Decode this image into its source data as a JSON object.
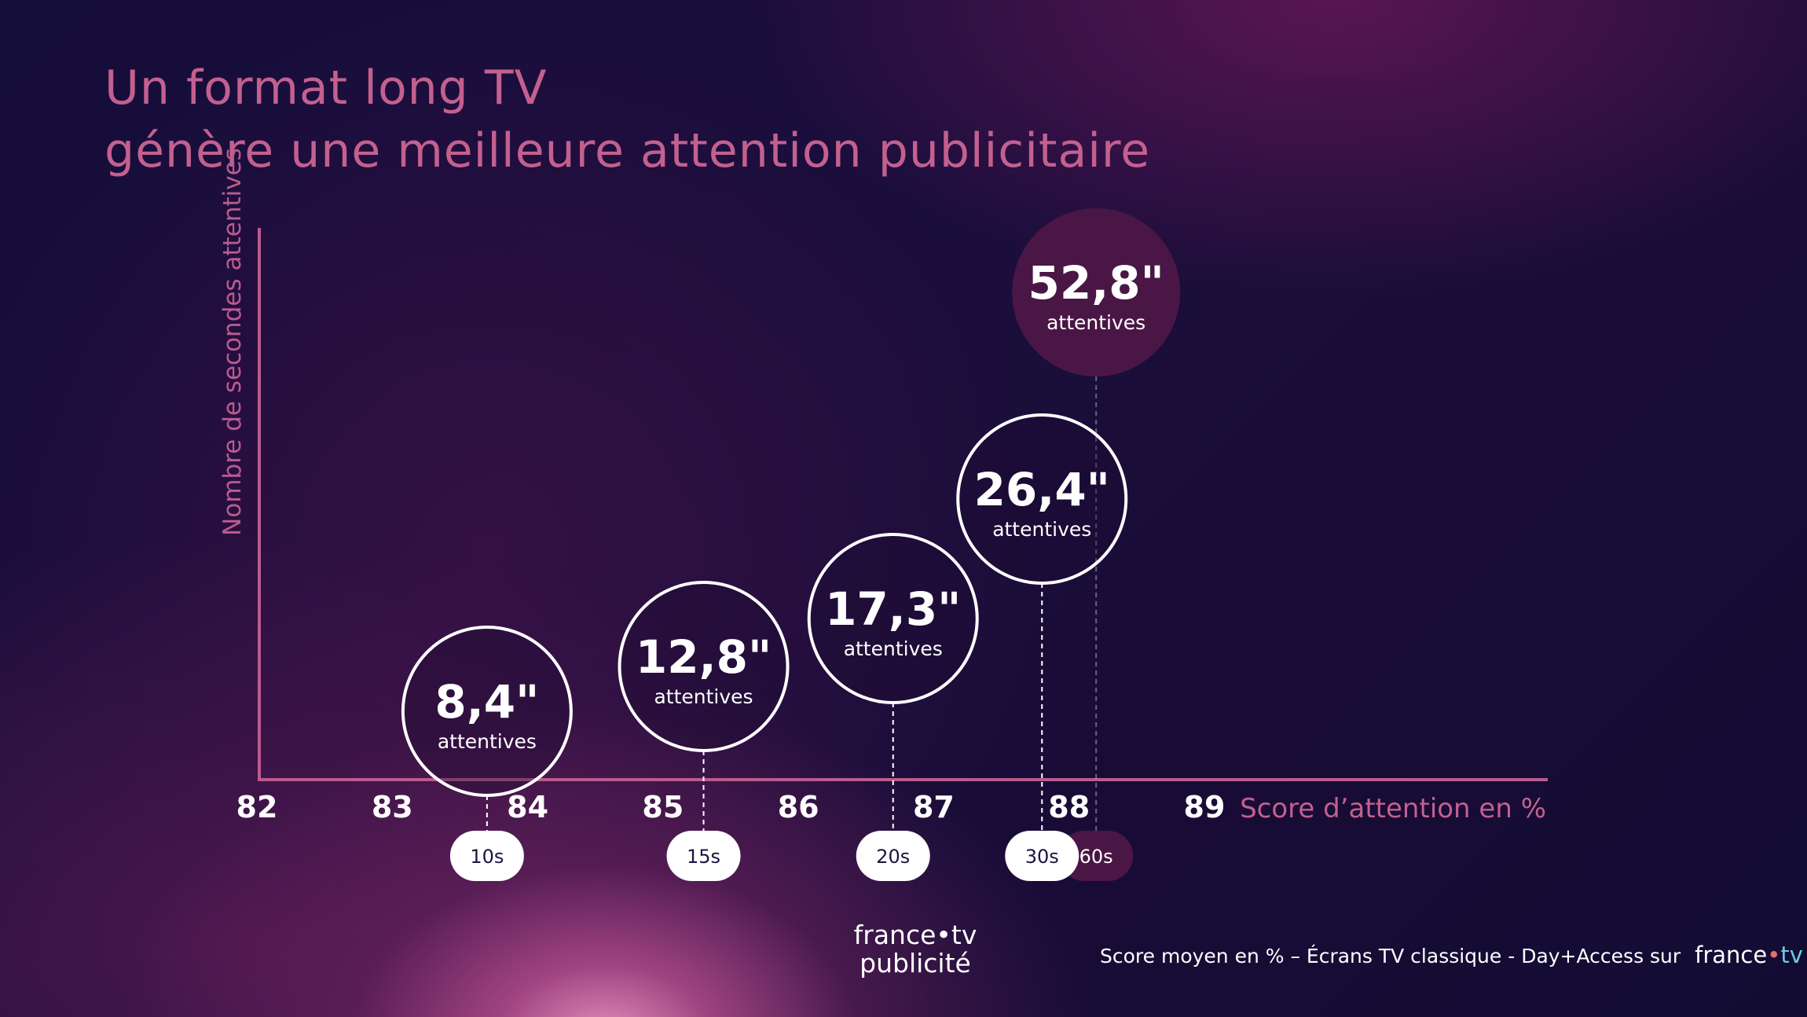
{
  "title": {
    "line1": "Un format long TV",
    "line2": "génère une meilleure attention publicitaire"
  },
  "chart_data": {
    "type": "scatter",
    "ylabel": "Nombre de secondes attentives",
    "xlabel": "Score d’attention en %",
    "xlim": [
      82,
      89
    ],
    "x_ticks": [
      "82",
      "83",
      "84",
      "85",
      "86",
      "87",
      "88",
      "89"
    ],
    "grid": false,
    "points": [
      {
        "format": "10s",
        "x": 83.7,
        "y": 8.4,
        "value_label": "8,4\"",
        "unit_label": "attentives"
      },
      {
        "format": "15s",
        "x": 85.3,
        "y": 12.8,
        "value_label": "12,8\"",
        "unit_label": "attentives"
      },
      {
        "format": "20s",
        "x": 86.7,
        "y": 17.3,
        "value_label": "17,3\"",
        "unit_label": "attentives"
      },
      {
        "format": "30s",
        "x": 87.8,
        "y": 26.4,
        "value_label": "26,4\"",
        "unit_label": "attentives"
      },
      {
        "format": "60s",
        "x": 88.2,
        "y": 52.8,
        "value_label": "52,8\"",
        "unit_label": "attentives"
      }
    ],
    "colors": {
      "axis": "#b95c8d",
      "label": "#c3608f",
      "bubble_outline": "#ffffff",
      "bubble_60s_fill": "#4a1645",
      "pill_fill": "#ffffff",
      "pill_60s_fill": "#4a1645"
    }
  },
  "logo": {
    "line1": "france•tv",
    "line2": "publicité"
  },
  "footer": {
    "text": "Score moyen en % – Écrans TV classique - Day+Access  sur",
    "brand_main": "france",
    "brand_dot": "•",
    "brand_tv": "tv"
  }
}
